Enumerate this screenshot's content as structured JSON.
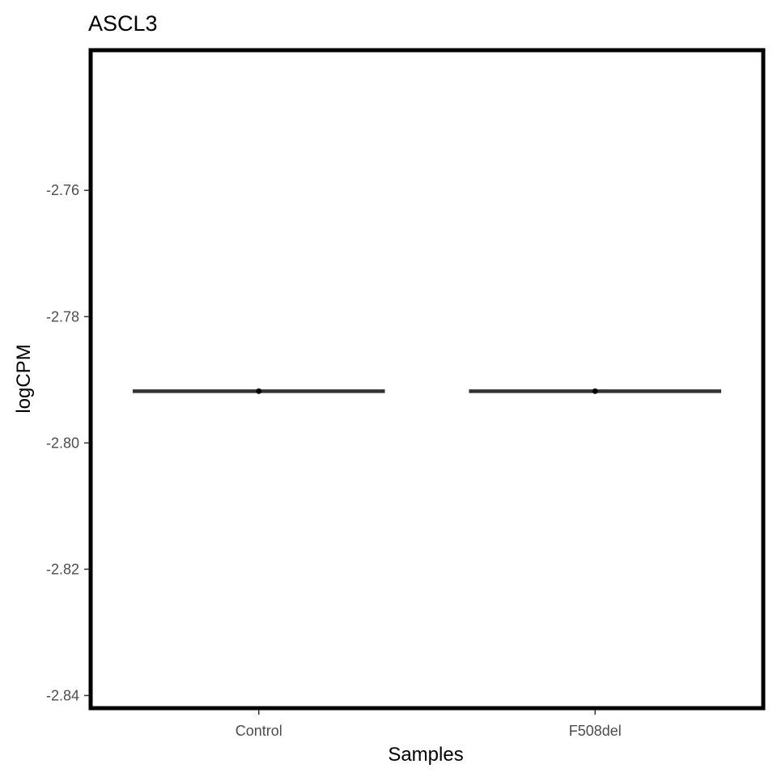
{
  "chart_data": {
    "type": "box",
    "title": "ASCL3",
    "xlabel": "Samples",
    "ylabel": "logCPM",
    "categories": [
      "Control",
      "F508del"
    ],
    "values": [
      -2.7918,
      -2.7918
    ],
    "ylim": [
      -2.842,
      -2.7378
    ],
    "yticks": [
      -2.76,
      -2.78,
      -2.8,
      -2.82,
      -2.84
    ],
    "ytick_labels": [
      "-2.76",
      "-2.78",
      "-2.80",
      "-2.82",
      "-2.84"
    ],
    "grid": false,
    "legend": "none",
    "colors": {
      "box": "#333333",
      "point": "#000000",
      "panel_border": "#000000",
      "tick_text": "#4d4d4d"
    }
  }
}
